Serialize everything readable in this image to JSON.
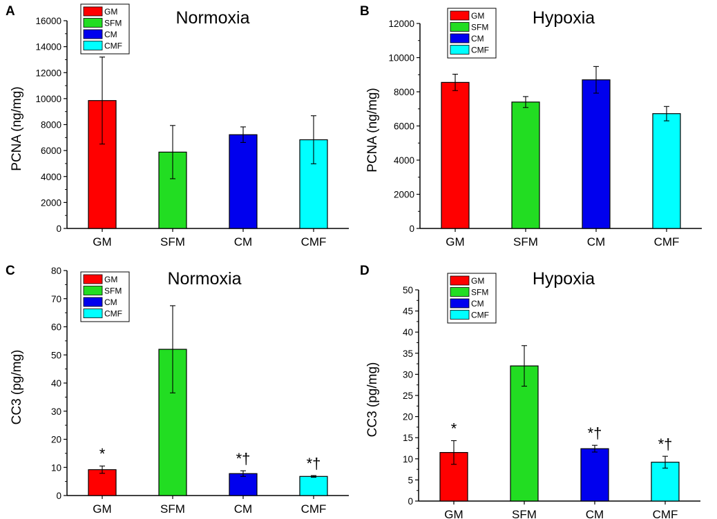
{
  "chart_data": [
    {
      "type": "bar",
      "panel": "A",
      "title": "Normoxia",
      "xlabel": "",
      "ylabel": "PCNA (ng/mg)",
      "ylim": [
        0,
        16000
      ],
      "yticks": [
        "0",
        "2000",
        "4000",
        "6000",
        "8000",
        "10000",
        "12000",
        "14000",
        "16000"
      ],
      "categories": [
        "GM",
        "SFM",
        "CM",
        "CMF"
      ],
      "values": [
        9850,
        5880,
        7220,
        6830
      ],
      "errors": [
        3350,
        2050,
        600,
        1850
      ],
      "annotations": [
        "",
        "",
        "",
        ""
      ],
      "legend": [
        "GM",
        "SFM",
        "CM",
        "CMF"
      ],
      "legend_position": "top-left"
    },
    {
      "type": "bar",
      "panel": "B",
      "title": "Hypoxia",
      "xlabel": "",
      "ylabel": "PCNA (ng/mg)",
      "ylim": [
        0,
        12000
      ],
      "yticks": [
        "0",
        "2000",
        "4000",
        "6000",
        "8000",
        "10000",
        "12000"
      ],
      "categories": [
        "GM",
        "SFM",
        "CM",
        "CMF"
      ],
      "values": [
        8550,
        7400,
        8700,
        6720
      ],
      "errors": [
        480,
        320,
        780,
        420
      ],
      "annotations": [
        "",
        "",
        "",
        ""
      ],
      "legend": [
        "GM",
        "SFM",
        "CM",
        "CMF"
      ],
      "legend_position": "top-left"
    },
    {
      "type": "bar",
      "panel": "C",
      "title": "Normoxia",
      "xlabel": "",
      "ylabel": "CC3 (pg/mg)",
      "ylim": [
        0,
        80
      ],
      "yticks": [
        "0",
        "10",
        "20",
        "30",
        "40",
        "50",
        "60",
        "70",
        "80"
      ],
      "categories": [
        "GM",
        "SFM",
        "CM",
        "CMF"
      ],
      "values": [
        9.2,
        52,
        7.8,
        6.8
      ],
      "errors": [
        1.3,
        15.5,
        1.0,
        0.3
      ],
      "annotations": [
        "*",
        "",
        "*†",
        "*†"
      ],
      "legend": [
        "GM",
        "SFM",
        "CM",
        "CMF"
      ],
      "legend_position": "top-left"
    },
    {
      "type": "bar",
      "panel": "D",
      "title": "Hypoxia",
      "xlabel": "",
      "ylabel": "CC3 (pg/mg)",
      "ylim": [
        0,
        50
      ],
      "yticks": [
        "0",
        "5",
        "10",
        "15",
        "20",
        "25",
        "30",
        "35",
        "40",
        "45",
        "50"
      ],
      "categories": [
        "GM",
        "SFM",
        "CM",
        "CMF"
      ],
      "values": [
        11.5,
        32,
        12.4,
        9.2
      ],
      "errors": [
        2.8,
        4.8,
        0.8,
        1.4
      ],
      "annotations": [
        "*",
        "",
        "*†",
        "*†"
      ],
      "legend": [
        "GM",
        "SFM",
        "CM",
        "CMF"
      ],
      "legend_position": "top-left"
    }
  ],
  "colors": {
    "GM": "#ff0000",
    "SFM": "#22dd22",
    "CM": "#0000ee",
    "CMF": "#00ffff",
    "axis": "#000000"
  }
}
